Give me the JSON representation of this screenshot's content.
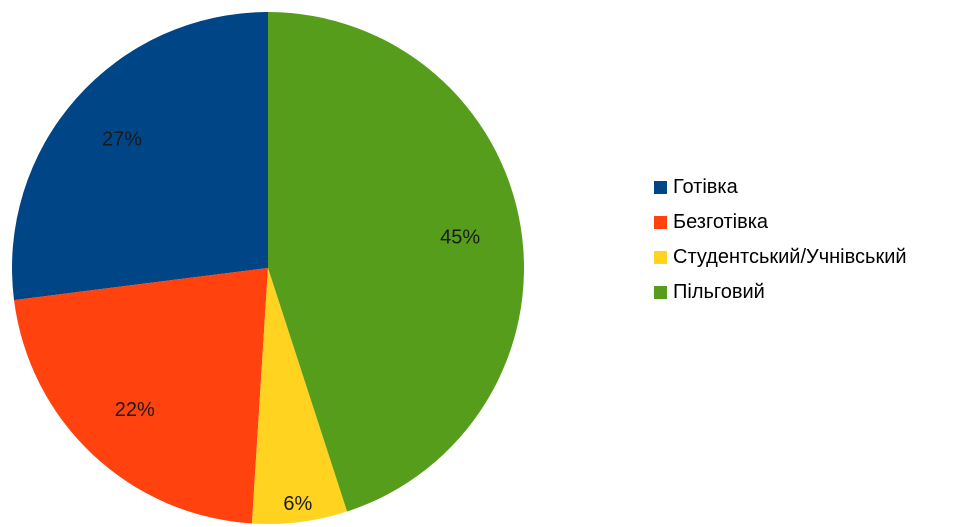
{
  "chart_data": {
    "type": "pie",
    "labels": [
      "Готівка",
      "Безготівка",
      "Студентський/Учнівський",
      "Пільговий"
    ],
    "values": [
      27,
      22,
      6,
      45
    ],
    "value_labels": [
      "27%",
      "22%",
      "6%",
      "45%"
    ],
    "colors": [
      "#004586",
      "#ff420e",
      "#ffd320",
      "#579d1c"
    ],
    "legend_position": "right"
  }
}
